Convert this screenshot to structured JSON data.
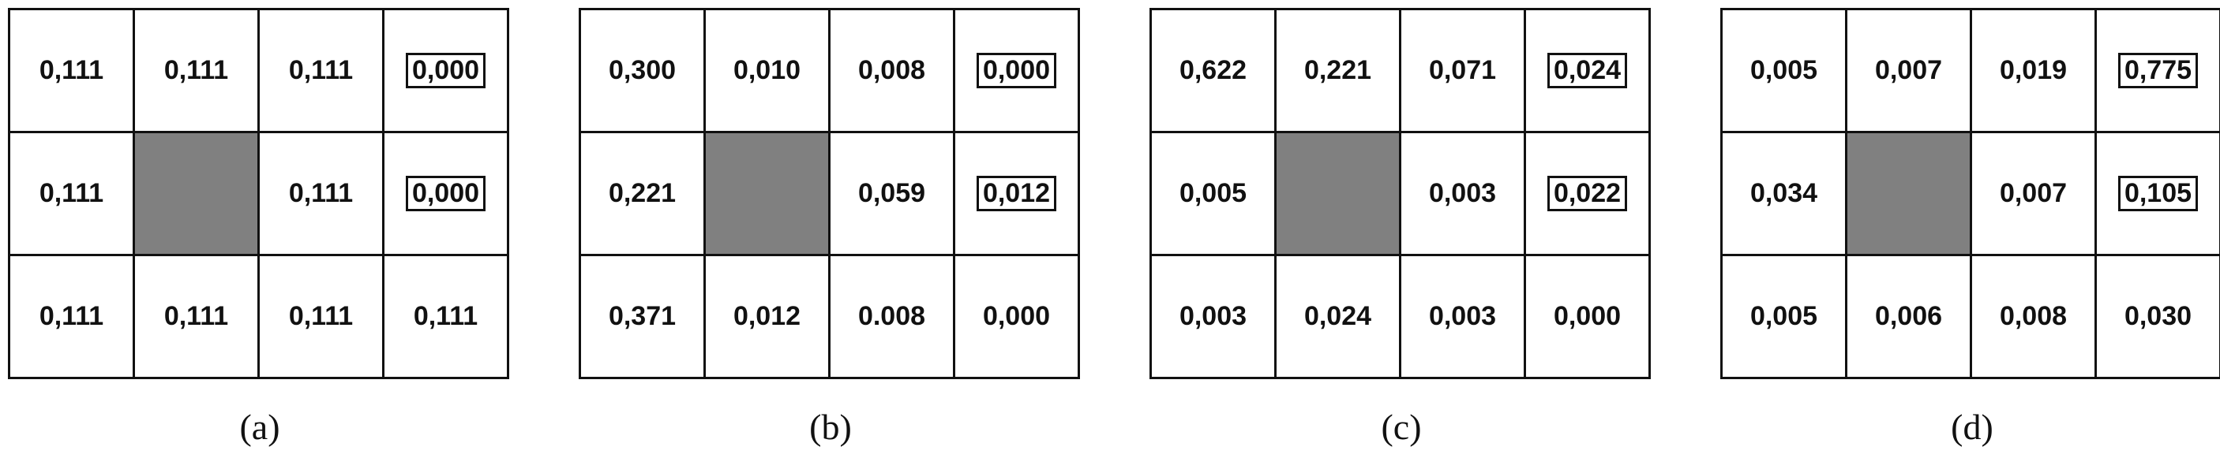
{
  "panels": [
    {
      "label": "(a)",
      "rows": [
        [
          {
            "v": "0,111"
          },
          {
            "v": "0,111"
          },
          {
            "v": "0,111"
          },
          {
            "v": "0,000",
            "boxed": true
          }
        ],
        [
          {
            "v": "0,111"
          },
          {
            "blocked": true
          },
          {
            "v": "0,111"
          },
          {
            "v": "0,000",
            "boxed": true
          }
        ],
        [
          {
            "v": "0,111"
          },
          {
            "v": "0,111"
          },
          {
            "v": "0,111"
          },
          {
            "v": "0,111"
          }
        ]
      ]
    },
    {
      "label": "(b)",
      "rows": [
        [
          {
            "v": "0,300"
          },
          {
            "v": "0,010"
          },
          {
            "v": "0,008"
          },
          {
            "v": "0,000",
            "boxed": true
          }
        ],
        [
          {
            "v": "0,221"
          },
          {
            "blocked": true
          },
          {
            "v": "0,059"
          },
          {
            "v": "0,012",
            "boxed": true
          }
        ],
        [
          {
            "v": "0,371"
          },
          {
            "v": "0,012"
          },
          {
            "v": "0.008"
          },
          {
            "v": "0,000"
          }
        ]
      ]
    },
    {
      "label": "(c)",
      "rows": [
        [
          {
            "v": "0,622"
          },
          {
            "v": "0,221"
          },
          {
            "v": "0,071"
          },
          {
            "v": "0,024",
            "boxed": true
          }
        ],
        [
          {
            "v": "0,005"
          },
          {
            "blocked": true
          },
          {
            "v": "0,003"
          },
          {
            "v": "0,022",
            "boxed": true
          }
        ],
        [
          {
            "v": "0,003"
          },
          {
            "v": "0,024"
          },
          {
            "v": "0,003"
          },
          {
            "v": "0,000"
          }
        ]
      ]
    },
    {
      "label": "(d)",
      "rows": [
        [
          {
            "v": "0,005"
          },
          {
            "v": "0,007"
          },
          {
            "v": "0,019"
          },
          {
            "v": "0,775",
            "boxed": true
          }
        ],
        [
          {
            "v": "0,034"
          },
          {
            "blocked": true
          },
          {
            "v": "0,007"
          },
          {
            "v": "0,105",
            "boxed": true
          }
        ],
        [
          {
            "v": "0,005"
          },
          {
            "v": "0,006"
          },
          {
            "v": "0,008"
          },
          {
            "v": "0,030"
          }
        ]
      ]
    }
  ],
  "colors": {
    "blocked": "#808080",
    "line": "#111111"
  }
}
